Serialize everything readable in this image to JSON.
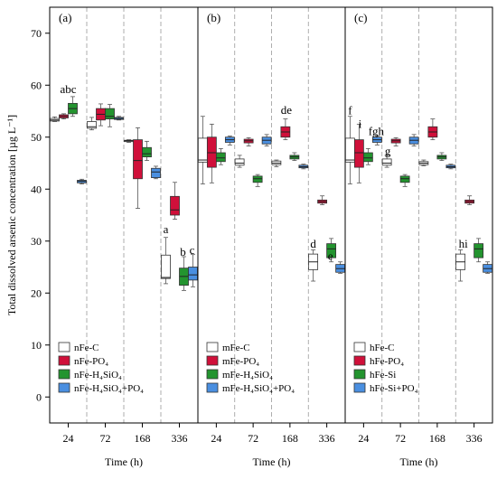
{
  "chart_data": {
    "type": "boxplot",
    "ylabel": "Total dissolved arsenic concentration [µg L⁻¹]",
    "ylim": [
      -5,
      75
    ],
    "yticks": [
      0,
      10,
      20,
      30,
      40,
      50,
      60,
      70
    ],
    "xlabel": "Time (h)",
    "categories": [
      "24",
      "72",
      "168",
      "336"
    ],
    "colors": [
      "#ffffff",
      "#d0103a",
      "#23942f",
      "#4a8fe0"
    ],
    "panels": [
      {
        "label": "(a)",
        "legend": [
          "nFe-C",
          "nFe-PO₄",
          "nFe-H₄SiO₄",
          "nFe-H₄SiO₄+PO₄"
        ],
        "boxes": [
          [
            {
              "min": 53.0,
              "q1": 53.1,
              "med": 53.3,
              "q3": 53.6,
              "max": 53.9
            },
            {
              "min": 51.4,
              "q1": 51.7,
              "med": 52.0,
              "q3": 53.0,
              "max": 53.8
            },
            {
              "min": 49.0,
              "q1": 49.2,
              "med": 49.3,
              "q3": 49.4,
              "max": 49.5
            },
            {
              "min": 21.8,
              "q1": 22.8,
              "med": 23.0,
              "q3": 27.3,
              "max": 30.7
            }
          ],
          [
            {
              "min": 53.5,
              "q1": 53.7,
              "med": 54.0,
              "q3": 54.3,
              "max": 54.5
            },
            {
              "min": 52.2,
              "q1": 53.3,
              "med": 54.4,
              "q3": 55.5,
              "max": 56.4
            },
            {
              "min": 36.3,
              "q1": 42.0,
              "med": 45.5,
              "q3": 49.5,
              "max": 51.8
            },
            {
              "min": 34.2,
              "q1": 35.0,
              "med": 36.0,
              "q3": 38.6,
              "max": 41.3
            }
          ],
          [
            {
              "min": 54.0,
              "q1": 54.5,
              "med": 55.5,
              "q3": 56.5,
              "max": 57.8
            },
            {
              "min": 52.0,
              "q1": 53.5,
              "med": 54.0,
              "q3": 55.5,
              "max": 56.3
            },
            {
              "min": 45.5,
              "q1": 46.2,
              "med": 46.8,
              "q3": 48.0,
              "max": 49.2
            },
            {
              "min": 20.5,
              "q1": 21.5,
              "med": 23.2,
              "q3": 24.8,
              "max": 27.0
            }
          ],
          [
            {
              "min": 41.0,
              "q1": 41.2,
              "med": 41.5,
              "q3": 41.7,
              "max": 41.9
            },
            {
              "min": 53.3,
              "q1": 53.4,
              "med": 53.6,
              "q3": 53.8,
              "max": 54.0
            },
            {
              "min": 42.0,
              "q1": 42.2,
              "med": 43.3,
              "q3": 44.0,
              "max": 44.4
            },
            {
              "min": 21.2,
              "q1": 22.5,
              "med": 23.5,
              "q3": 25.0,
              "max": 27.4
            }
          ]
        ],
        "annotations": [
          {
            "text": "abc",
            "x": 0,
            "y": 58.5
          },
          {
            "text": "a",
            "x": 3,
            "y": 31.5
          },
          {
            "text": "b",
            "x": 3,
            "y": 27.2
          },
          {
            "text": "c",
            "x": 3,
            "y": 27.5
          }
        ]
      },
      {
        "label": "(b)",
        "legend": [
          "mFe-C",
          "mFe-PO₄",
          "mFe-H₄SiO₄",
          "mFe-H₄SiO₄+PO₄"
        ],
        "boxes": [
          [
            {
              "min": 41.0,
              "q1": 45.2,
              "med": 45.6,
              "q3": 49.8,
              "max": 54.0
            },
            {
              "min": 44.2,
              "q1": 44.6,
              "med": 45.0,
              "q3": 45.8,
              "max": 46.5
            },
            {
              "min": 44.3,
              "q1": 44.7,
              "med": 45.0,
              "q3": 45.4,
              "max": 45.6
            },
            {
              "min": 22.3,
              "q1": 24.5,
              "med": 26.0,
              "q3": 27.5,
              "max": 28.3
            }
          ],
          [
            {
              "min": 41.2,
              "q1": 44.2,
              "med": 47.0,
              "q3": 50.0,
              "max": 52.5
            },
            {
              "min": 48.3,
              "q1": 48.9,
              "med": 49.3,
              "q3": 49.6,
              "max": 49.9
            },
            {
              "min": 49.5,
              "q1": 50.0,
              "med": 51.0,
              "q3": 52.0,
              "max": 53.5
            },
            {
              "min": 37.0,
              "q1": 37.3,
              "med": 37.6,
              "q3": 37.9,
              "max": 38.7
            }
          ],
          [
            {
              "min": 44.7,
              "q1": 45.3,
              "med": 46.0,
              "q3": 47.0,
              "max": 47.8
            },
            {
              "min": 40.5,
              "q1": 41.3,
              "med": 42.0,
              "q3": 42.5,
              "max": 42.8
            },
            {
              "min": 45.5,
              "q1": 45.8,
              "med": 46.2,
              "q3": 46.5,
              "max": 47.0
            },
            {
              "min": 26.0,
              "q1": 26.8,
              "med": 28.5,
              "q3": 29.5,
              "max": 30.5
            }
          ],
          [
            {
              "min": 48.5,
              "q1": 49.0,
              "med": 49.5,
              "q3": 50.0,
              "max": 50.2
            },
            {
              "min": 48.3,
              "q1": 48.7,
              "med": 49.4,
              "q3": 50.0,
              "max": 50.5
            },
            {
              "min": 43.9,
              "q1": 44.1,
              "med": 44.3,
              "q3": 44.6,
              "max": 44.8
            },
            {
              "min": 23.8,
              "q1": 24.0,
              "med": 24.7,
              "q3": 25.5,
              "max": 26.0
            }
          ]
        ],
        "annotations": [
          {
            "text": "de",
            "x": 2,
            "y": 54.5
          },
          {
            "text": "d",
            "x": 3,
            "y": 28.7
          },
          {
            "text": "e",
            "x": 3,
            "y": 26.4
          }
        ]
      },
      {
        "label": "(c)",
        "legend": [
          "hFe-C",
          "hFe-PO₄",
          "hFe-Si",
          "hFe-Si+PO₄"
        ],
        "boxes": [
          [
            {
              "min": 41.0,
              "q1": 45.2,
              "med": 45.6,
              "q3": 49.8,
              "max": 54.0
            },
            {
              "min": 44.2,
              "q1": 44.6,
              "med": 45.0,
              "q3": 45.8,
              "max": 46.5
            },
            {
              "min": 44.5,
              "q1": 44.7,
              "med": 45.0,
              "q3": 45.3,
              "max": 45.6
            },
            {
              "min": 22.3,
              "q1": 24.5,
              "med": 26.0,
              "q3": 27.5,
              "max": 28.3
            }
          ],
          [
            {
              "min": 41.2,
              "q1": 44.2,
              "med": 47.0,
              "q3": 49.5,
              "max": 52.5
            },
            {
              "min": 48.3,
              "q1": 48.9,
              "med": 49.3,
              "q3": 49.6,
              "max": 49.9
            },
            {
              "min": 49.5,
              "q1": 50.0,
              "med": 51.0,
              "q3": 52.0,
              "max": 53.5
            },
            {
              "min": 37.0,
              "q1": 37.3,
              "med": 37.6,
              "q3": 37.9,
              "max": 38.7
            }
          ],
          [
            {
              "min": 44.7,
              "q1": 45.3,
              "med": 46.0,
              "q3": 47.0,
              "max": 47.8
            },
            {
              "min": 40.5,
              "q1": 41.3,
              "med": 42.0,
              "q3": 42.5,
              "max": 42.8
            },
            {
              "min": 45.5,
              "q1": 45.8,
              "med": 46.2,
              "q3": 46.5,
              "max": 47.0
            },
            {
              "min": 26.0,
              "q1": 26.8,
              "med": 28.5,
              "q3": 29.5,
              "max": 30.5
            }
          ],
          [
            {
              "min": 48.5,
              "q1": 49.0,
              "med": 49.5,
              "q3": 50.0,
              "max": 50.2
            },
            {
              "min": 48.3,
              "q1": 48.7,
              "med": 49.4,
              "q3": 50.0,
              "max": 50.5
            },
            {
              "min": 43.9,
              "q1": 44.1,
              "med": 44.3,
              "q3": 44.6,
              "max": 44.8
            },
            {
              "min": 23.8,
              "q1": 24.0,
              "med": 24.7,
              "q3": 25.5,
              "max": 26.0
            }
          ]
        ],
        "annotations": [
          {
            "text": "f",
            "x": 0,
            "y": 54.4
          },
          {
            "text": "i",
            "x": 0,
            "y": 51.8
          },
          {
            "text": "fgh",
            "x": 0,
            "y": 50.4
          },
          {
            "text": "g",
            "x": 1,
            "y": 46.6
          },
          {
            "text": "hi",
            "x": 3,
            "y": 28.7
          }
        ]
      }
    ]
  }
}
